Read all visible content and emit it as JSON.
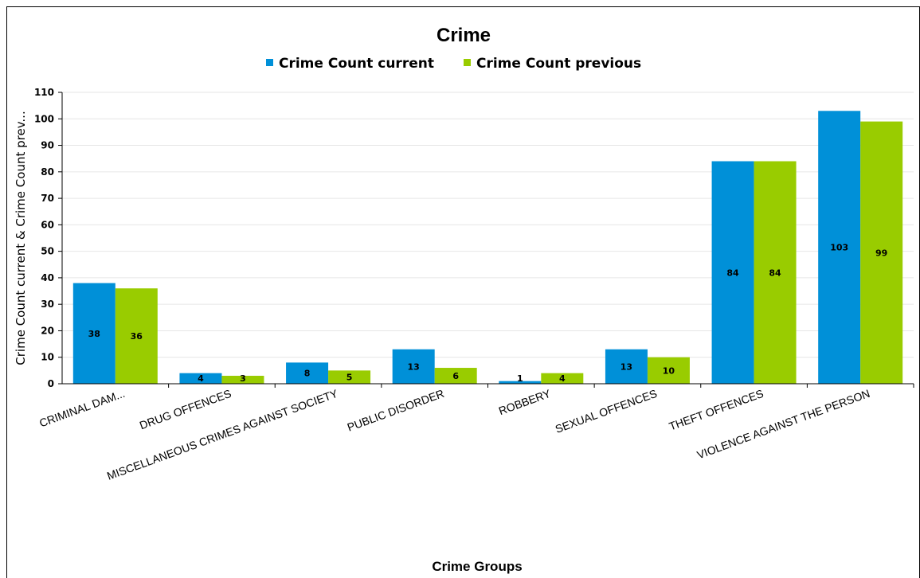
{
  "chart_data": {
    "type": "bar",
    "title": "Crime",
    "xlabel": "Crime Groups",
    "ylabel": "Crime Count current & Crime Count prev...",
    "ylim": [
      0,
      110
    ],
    "yticks": [
      0,
      10,
      20,
      30,
      40,
      50,
      60,
      70,
      80,
      90,
      100,
      110
    ],
    "grid": true,
    "legend_position": "top",
    "categories": [
      "CRIMINAL DAM...",
      "DRUG OFFENCES",
      "MISCELLANEOUS CRIMES AGAINST SOCIETY",
      "PUBLIC DISORDER",
      "ROBBERY",
      "SEXUAL OFFENCES",
      "THEFT OFFENCES",
      "VIOLENCE AGAINST THE PERSON"
    ],
    "series": [
      {
        "name": "Crime Count current",
        "color": "#0090d8",
        "values": [
          38,
          4,
          8,
          13,
          1,
          13,
          84,
          103
        ]
      },
      {
        "name": "Crime Count previous",
        "color": "#99cc00",
        "values": [
          36,
          3,
          5,
          6,
          4,
          10,
          84,
          99
        ]
      }
    ]
  }
}
